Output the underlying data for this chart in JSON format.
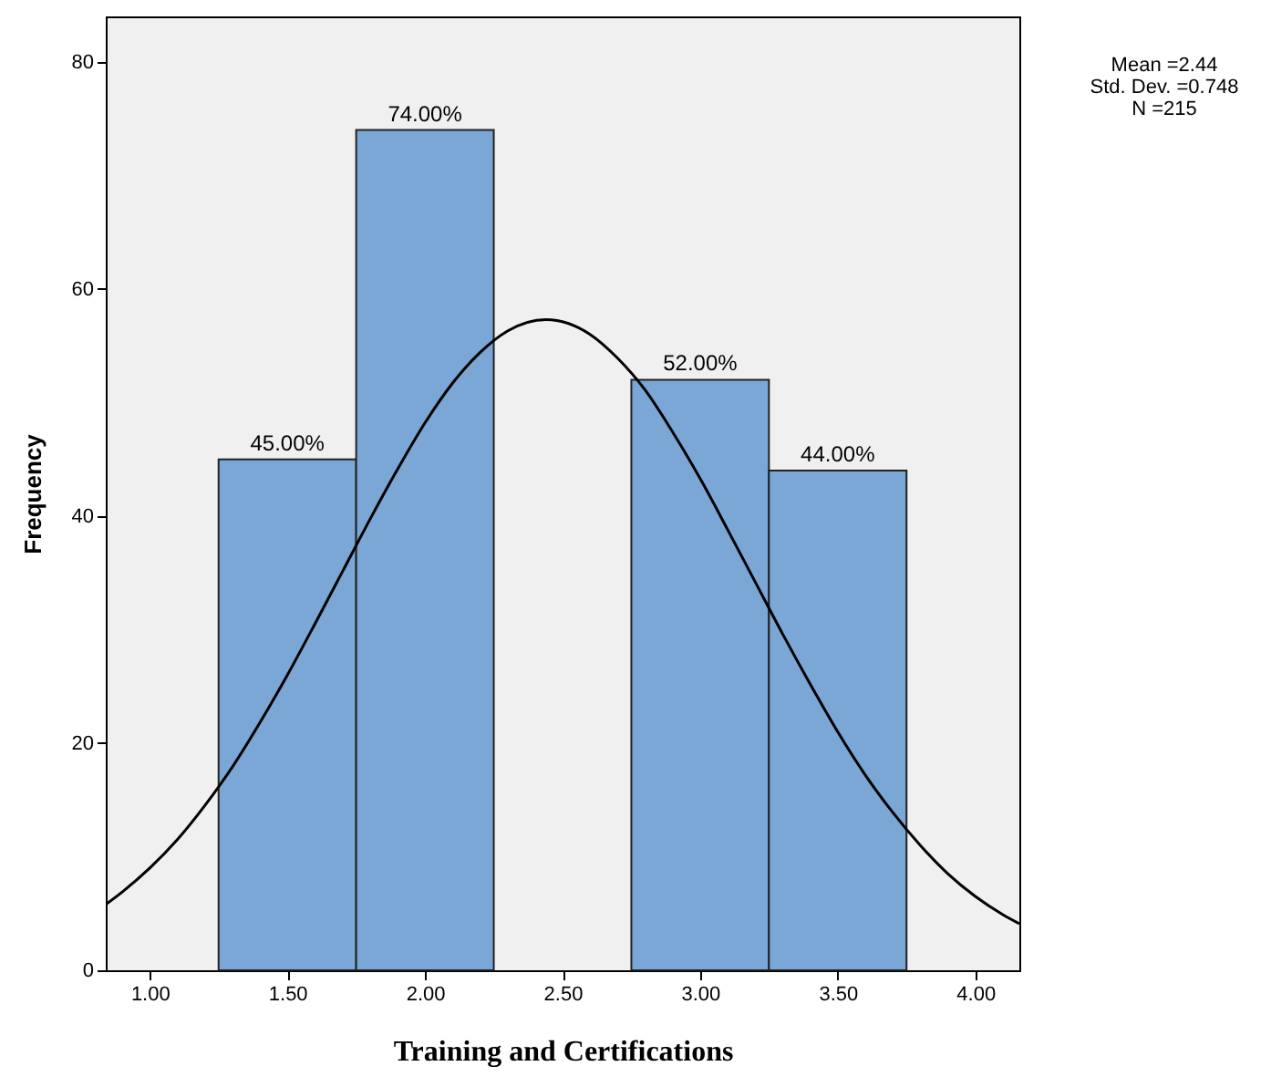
{
  "chart_data": {
    "type": "histogram",
    "xlabel": "Training and Certifications",
    "ylabel": "Frequency",
    "bins": [
      1.25,
      1.75,
      2.25,
      2.75,
      3.25,
      3.75
    ],
    "values": [
      45,
      74,
      0,
      52,
      44
    ],
    "value_labels": [
      "45.00%",
      "74.00%",
      null,
      "52.00%",
      "44.00%"
    ],
    "color": "#7ba7d6",
    "series": [
      {
        "type": "line",
        "color": "#000000",
        "x": [
          0.84,
          0.9,
          1.0,
          1.1,
          1.2,
          1.3,
          1.4,
          1.5,
          1.6,
          1.7,
          1.8,
          1.9,
          2.0,
          2.1,
          2.2,
          2.3,
          2.44,
          2.6,
          2.7,
          2.8,
          2.9,
          3.0,
          3.1,
          3.2,
          3.3,
          3.4,
          3.5,
          3.6,
          3.7,
          3.8,
          3.9,
          4.0,
          4.1,
          4.16
        ],
        "values": [
          5.8,
          6.9,
          9.0,
          11.5,
          14.5,
          17.9,
          21.8,
          26.0,
          30.5,
          35.1,
          39.7,
          44.1,
          48.2,
          51.7,
          54.4,
          56.3,
          57.3,
          56.0,
          53.9,
          51.1,
          47.4,
          43.3,
          38.8,
          34.2,
          29.6,
          25.2,
          21.0,
          17.2,
          13.9,
          11.0,
          8.5,
          6.5,
          4.9,
          4.1
        ]
      }
    ],
    "xlim": [
      0.84,
      4.16
    ],
    "ylim": [
      0,
      84
    ],
    "xticks": [
      {
        "value": 1,
        "label": "1.00"
      },
      {
        "value": 1.5,
        "label": "1.50"
      },
      {
        "value": 2,
        "label": "2.00"
      },
      {
        "value": 2.5,
        "label": "2.50"
      },
      {
        "value": 3,
        "label": "3.00"
      },
      {
        "value": 3.5,
        "label": "3.50"
      },
      {
        "value": 4,
        "label": "4.00"
      }
    ],
    "yticks": [
      0,
      20,
      40,
      60,
      80
    ],
    "grid": false,
    "annotations": [
      "Mean =2.44",
      "Std. Dev. =0.748",
      "N =215"
    ]
  }
}
